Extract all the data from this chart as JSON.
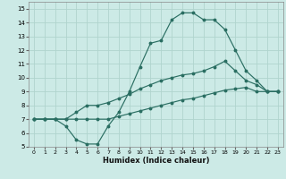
{
  "xlabel": "Humidex (Indice chaleur)",
  "bg_color": "#cceae6",
  "grid_color": "#b0d4ce",
  "line_color": "#2a6e62",
  "xlim": [
    -0.5,
    23.5
  ],
  "ylim": [
    5,
    15.5
  ],
  "xticks": [
    0,
    1,
    2,
    3,
    4,
    5,
    6,
    7,
    8,
    9,
    10,
    11,
    12,
    13,
    14,
    15,
    16,
    17,
    18,
    19,
    20,
    21,
    22,
    23
  ],
  "yticks": [
    5,
    6,
    7,
    8,
    9,
    10,
    11,
    12,
    13,
    14,
    15
  ],
  "line1": {
    "x": [
      0,
      1,
      2,
      3,
      4,
      5,
      6,
      7,
      8,
      9,
      10,
      11,
      12,
      13,
      14,
      15,
      16,
      17,
      18,
      19,
      20,
      21,
      22,
      23
    ],
    "y": [
      7.0,
      7.0,
      7.0,
      7.0,
      7.0,
      7.0,
      7.0,
      7.0,
      7.2,
      7.4,
      7.6,
      7.8,
      8.0,
      8.2,
      8.4,
      8.5,
      8.7,
      8.9,
      9.1,
      9.2,
      9.3,
      9.0,
      9.0,
      9.0
    ]
  },
  "line2": {
    "x": [
      0,
      1,
      2,
      3,
      4,
      5,
      6,
      7,
      8,
      9,
      10,
      11,
      12,
      13,
      14,
      15,
      16,
      17,
      18,
      19,
      20,
      21,
      22,
      23
    ],
    "y": [
      7.0,
      7.0,
      7.0,
      7.0,
      7.5,
      8.0,
      8.0,
      8.2,
      8.5,
      8.8,
      9.2,
      9.5,
      9.8,
      10.0,
      10.2,
      10.3,
      10.5,
      10.8,
      11.2,
      10.5,
      9.8,
      9.5,
      9.0,
      9.0
    ]
  },
  "line3": {
    "x": [
      0,
      1,
      2,
      3,
      4,
      5,
      6,
      7,
      8,
      9,
      10,
      11,
      12,
      13,
      14,
      15,
      16,
      17,
      18,
      19,
      20,
      21,
      22,
      23
    ],
    "y": [
      7.0,
      7.0,
      7.0,
      6.5,
      5.5,
      5.2,
      5.2,
      6.5,
      7.5,
      9.0,
      10.8,
      12.5,
      12.7,
      14.2,
      14.7,
      14.7,
      14.2,
      14.2,
      13.5,
      12.0,
      10.5,
      9.8,
      9.0,
      9.0
    ]
  }
}
